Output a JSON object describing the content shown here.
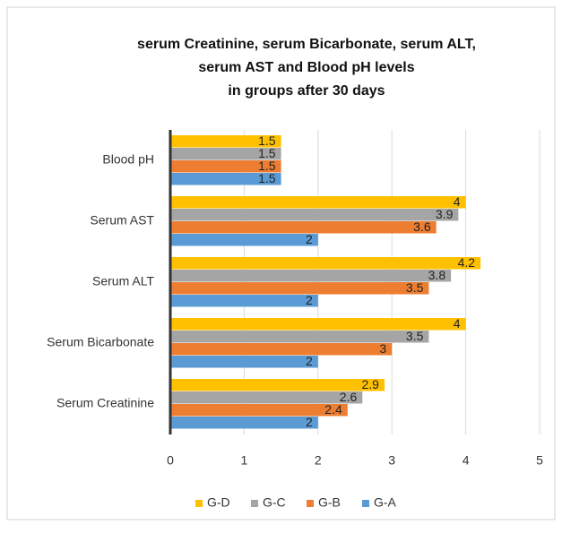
{
  "chart_data": {
    "type": "bar",
    "orientation": "horizontal",
    "title": [
      "serum Creatinine, serum Bicarbonate, serum ALT,",
      "serum AST and Blood pH levels",
      "in groups after 30 days"
    ],
    "categories": [
      "Blood pH",
      "Serum AST",
      "Serum ALT",
      "Serum Bicarbonate",
      "Serum Creatinine"
    ],
    "series": [
      {
        "name": "G-D",
        "color": "#ffc000",
        "values": [
          1.5,
          4,
          4.2,
          4,
          2.9
        ]
      },
      {
        "name": "G-C",
        "color": "#a5a5a5",
        "values": [
          1.5,
          3.9,
          3.8,
          3.5,
          2.6
        ]
      },
      {
        "name": "G-B",
        "color": "#ed7d31",
        "values": [
          1.5,
          3.6,
          3.5,
          3,
          2.4
        ]
      },
      {
        "name": "G-A",
        "color": "#5b9bd5",
        "values": [
          1.5,
          2,
          2,
          2,
          2
        ]
      }
    ],
    "xlim": [
      0,
      5
    ],
    "xticks": [
      0,
      1,
      2,
      3,
      4,
      5
    ],
    "grid": true,
    "legend": "bottom"
  }
}
